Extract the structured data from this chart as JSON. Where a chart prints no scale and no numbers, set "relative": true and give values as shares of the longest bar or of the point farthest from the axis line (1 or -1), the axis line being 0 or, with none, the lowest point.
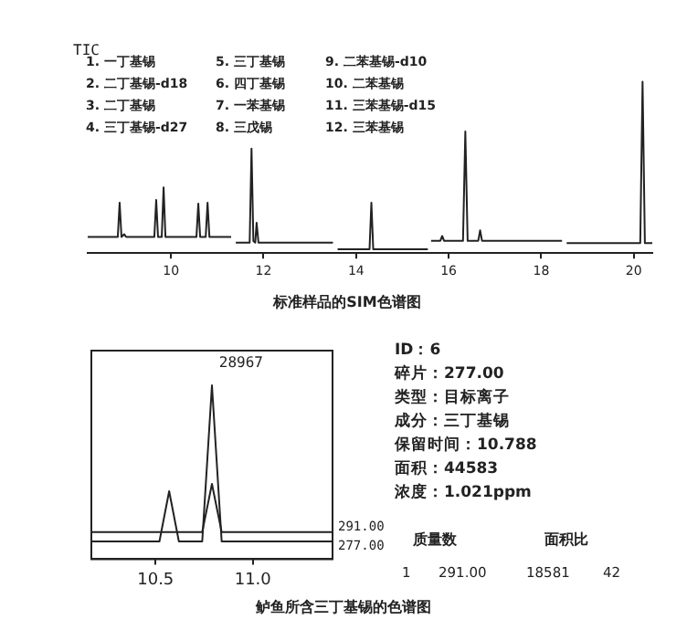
{
  "chart_data": [
    {
      "type": "line",
      "title": "标准样品的SIM色谱图",
      "annotations": [
        "TIC",
        "1. 一丁基锡",
        "2. 二丁基锡-d18",
        "3. 二丁基锡",
        "4. 三丁基锡-d27",
        "5. 三丁基锡",
        "6. 四丁基锡",
        "7. 一苯基锡",
        "8. 三戊锡",
        "9. 二苯基锡-d10",
        "10. 二苯基锡",
        "11. 三苯基锡-d15",
        "12. 三苯基锡"
      ],
      "relative": true,
      "xlim": [
        8.2,
        20.4
      ],
      "xticks": [
        10,
        12,
        14,
        16,
        18,
        20
      ],
      "tick_labels": "x",
      "marker": "none",
      "line_style": "solid",
      "series": [
        {
          "color": "#222222",
          "x": [
            8.2,
            8.85,
            8.89,
            8.93,
            8.99,
            9.03,
            9.64,
            9.68,
            9.72,
            9.8,
            9.84,
            9.88,
            10.55,
            10.59,
            10.63,
            10.75,
            10.79,
            10.83,
            11.3,
            11.35,
            11.4,
            11.7,
            11.74,
            11.78,
            11.82,
            11.85,
            11.89,
            13.5,
            13.55,
            13.6,
            14.29,
            14.33,
            14.37,
            15.55,
            15.58,
            15.62,
            15.82,
            15.86,
            15.9,
            16.31,
            16.36,
            16.41,
            16.64,
            16.68,
            16.72,
            18.45,
            18.5,
            18.55,
            20.14,
            20.19,
            20.24,
            20.4
          ],
          "values": [
            0.094,
            0.094,
            0.294,
            0.094,
            0.11,
            0.094,
            0.094,
            0.31,
            0.094,
            0.094,
            0.383,
            0.094,
            0.094,
            0.289,
            0.094,
            0.094,
            0.294,
            0.094,
            0.094,
            null,
            0.061,
            0.061,
            0.61,
            0.07,
            0.061,
            0.177,
            0.061,
            0.061,
            null,
            0.022,
            0.022,
            0.294,
            0.022,
            0.022,
            null,
            0.072,
            0.072,
            0.1,
            0.072,
            0.072,
            0.71,
            0.072,
            0.072,
            0.133,
            0.072,
            0.072,
            null,
            0.058,
            0.058,
            1,
            0.058,
            0.058
          ]
        }
      ]
    },
    {
      "type": "line",
      "title": "鲈鱼所含三丁基锡的色谱图",
      "annotations": [
        "28967"
      ],
      "relative": true,
      "xlim": [
        10.17,
        11.41
      ],
      "xticks": [
        10.5,
        {
          "value": 11,
          "label": "11.0"
        }
      ],
      "tick_labels": "x",
      "marker": "none",
      "line_style": "solid",
      "series": [
        {
          "name": "291.00",
          "color": "#222222",
          "x": [
            10.17,
            10.74,
            10.79,
            10.84,
            11.41
          ],
          "values": [
            0.156,
            0.156,
            0.433,
            0.156,
            0.156
          ]
        },
        {
          "name": "277.00",
          "color": "#222222",
          "x": [
            10.17,
            10.52,
            10.57,
            10.62,
            10.74,
            10.79,
            10.84,
            11.41
          ],
          "values": [
            0.102,
            0.102,
            0.391,
            0.102,
            0.102,
            1,
            0.102,
            0.102
          ]
        }
      ]
    },
    {
      "type": "other",
      "annotations": [
        "ID：6",
        "碎片：277.00",
        "类型：目标离子",
        "成分：三丁基锡",
        "保留时间：10.788",
        "面积：44583",
        "浓度：1.021ppm",
        "质量数",
        "面积比",
        "1",
        "291.00",
        "18581",
        "42"
      ]
    }
  ]
}
